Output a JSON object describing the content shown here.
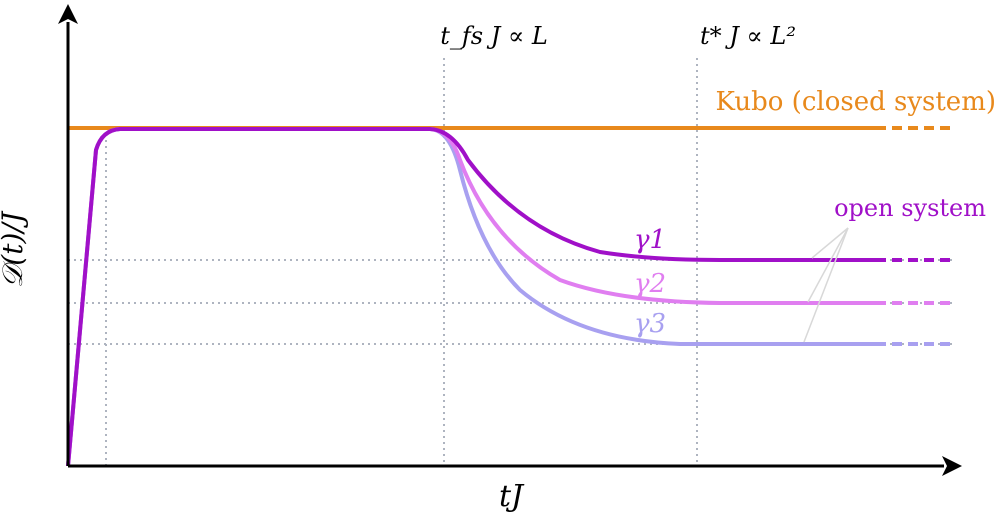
{
  "labels": {
    "y_axis": "𝒟(t)/J",
    "x_axis": "tJ",
    "tfs": "t_fs J ∝ L",
    "tstar": "t* J ∝ L²",
    "kubo": "Kubo (closed system)",
    "open": "open system",
    "gamma1": "γ1",
    "gamma2": "γ2",
    "gamma3": "γ3"
  },
  "colors": {
    "kubo": "#e8891c",
    "gamma1": "#a010c8",
    "gamma2": "#e07ef0",
    "gamma3": "#a8a0f0",
    "guide": "#aeb4c0",
    "axis": "#000000"
  }
}
